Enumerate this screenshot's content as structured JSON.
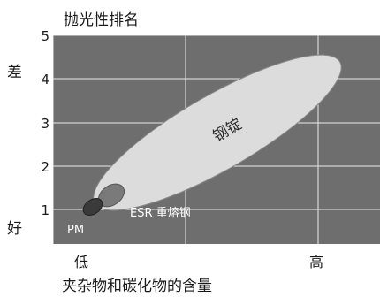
{
  "chart_data": {
    "type": "scatter",
    "title": "",
    "ylabel": "抛光性排名",
    "xlabel": "夹杂物和碳化物的含量",
    "y_ticks": [
      1,
      2,
      3,
      4,
      5
    ],
    "x_tick_labels": [
      "低",
      "高"
    ],
    "y_side_labels": {
      "top": "差",
      "bottom": "好"
    },
    "ylim": [
      0.5,
      5
    ],
    "xlim": [
      0,
      1
    ],
    "grid": true,
    "series": [
      {
        "name": "PM",
        "x": 0.1,
        "y": 0.95,
        "color": "#3a3a3a"
      },
      {
        "name": "ESR 重熔钢",
        "x": 0.13,
        "y": 1.3,
        "color": "#7a7a7a"
      },
      {
        "name": "钢锭",
        "x": 0.5,
        "y": 2.9,
        "color": "#dcdcdc"
      }
    ],
    "colors": {
      "plot_bg": "#6e6e6e",
      "grid": "#ffffff"
    }
  }
}
